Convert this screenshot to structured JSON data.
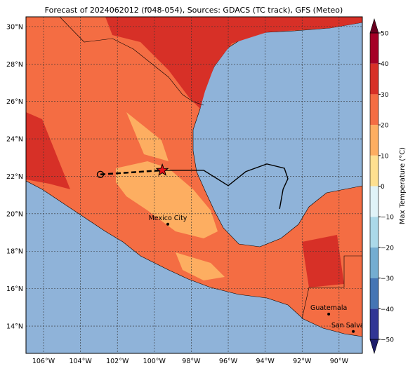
{
  "title": "Forecast of 2024062012 (f048-054), Sources: GDACS (TC track), GFS (Meteo)",
  "xlim": [
    -106.95,
    -88.74
  ],
  "ylim": [
    12.54,
    30.52
  ],
  "xticks": [
    {
      "value": -106,
      "label": "106°W"
    },
    {
      "value": -104,
      "label": "104°W"
    },
    {
      "value": -102,
      "label": "102°W"
    },
    {
      "value": -100,
      "label": "100°W"
    },
    {
      "value": -98,
      "label": "98°W"
    },
    {
      "value": -96,
      "label": "96°W"
    },
    {
      "value": -94,
      "label": "94°W"
    },
    {
      "value": -92,
      "label": "92°W"
    },
    {
      "value": -90,
      "label": "90°W"
    }
  ],
  "yticks": [
    {
      "value": 14,
      "label": "14°N"
    },
    {
      "value": 16,
      "label": "16°N"
    },
    {
      "value": 18,
      "label": "18°N"
    },
    {
      "value": 20,
      "label": "20°N"
    },
    {
      "value": 22,
      "label": "22°N"
    },
    {
      "value": 24,
      "label": "24°N"
    },
    {
      "value": 26,
      "label": "26°N"
    },
    {
      "value": 28,
      "label": "28°N"
    },
    {
      "value": 30,
      "label": "30°N"
    }
  ],
  "colorbar": {
    "label": "Max Temperature (°C)",
    "lim": [
      -50,
      50
    ],
    "ticks": [
      {
        "value": -50,
        "label": "−50"
      },
      {
        "value": -40,
        "label": "−40"
      },
      {
        "value": -30,
        "label": "−30"
      },
      {
        "value": -20,
        "label": "−20"
      },
      {
        "value": -10,
        "label": "−10"
      },
      0,
      10,
      20,
      30,
      40,
      50
    ],
    "colors": [
      "#313695",
      "#4575b4",
      "#74add1",
      "#abd9e9",
      "#e0f3f8",
      "#fee090",
      "#fdae61",
      "#f46d43",
      "#d73027",
      "#a50026"
    ],
    "extend_colors": [
      "#1d1d6b",
      "#67001f"
    ]
  },
  "past_track": {
    "lon": [
      -102.92,
      -99.57
    ],
    "lat": [
      22.1,
      22.32
    ]
  },
  "forecast_track": {
    "lon": [
      -99.57,
      -97.33,
      -96.0,
      -95.05,
      -93.91,
      -92.96,
      -92.77,
      -93.03,
      -93.22
    ],
    "lat": [
      22.32,
      22.32,
      21.5,
      22.25,
      22.66,
      22.43,
      21.87,
      21.31,
      20.26
    ]
  },
  "cities": [
    {
      "name": "Mexico City",
      "lon": -99.27,
      "lat": 19.44
    },
    {
      "name": "Guatemala",
      "lon": -90.56,
      "lat": 14.64
    },
    {
      "name": "San Salvador",
      "lon": -89.23,
      "lat": 13.71
    }
  ]
}
